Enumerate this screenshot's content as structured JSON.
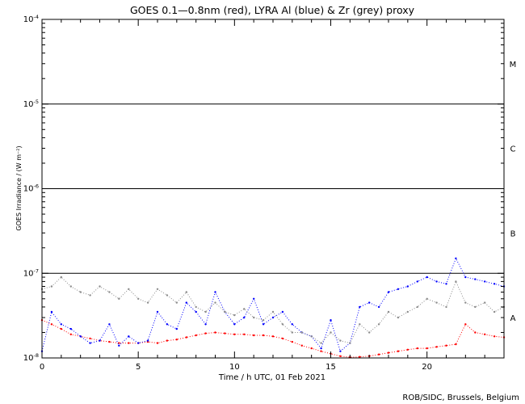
{
  "chart_data": {
    "type": "scatter",
    "title": "GOES 0.1—0.8nm (red), LYRA Al (blue) & Zr (grey) proxy",
    "xlabel": "Time / h UTC, 01 Feb 2021",
    "ylabel": "GOES Irradiance / (W m⁻²)",
    "x_range": [
      0,
      24
    ],
    "x_ticks": [
      "0",
      "5",
      "10",
      "15",
      "20"
    ],
    "x_tick_values": [
      0,
      5,
      10,
      15,
      20
    ],
    "y_scale": "log",
    "y_range": [
      1e-08,
      0.0001
    ],
    "y_tick_base": "10",
    "y_tick_exponents": [
      "-8",
      "-7",
      "-6",
      "-5",
      "-4"
    ],
    "y_tick_values": [
      1e-08,
      1e-07,
      1e-06,
      1e-05,
      0.0001
    ],
    "class_lines": [
      1e-07,
      1e-06,
      1e-05
    ],
    "classes": [
      {
        "label": "A",
        "y": 3e-08
      },
      {
        "label": "B",
        "y": 3e-07
      },
      {
        "label": "C",
        "y": 3e-06
      },
      {
        "label": "M",
        "y": 3e-05
      }
    ],
    "series": [
      {
        "name": "GOES 0.1—0.8nm",
        "color": "#ff0000",
        "points": [
          [
            0.0,
            2.8e-08
          ],
          [
            0.5,
            2.5e-08
          ],
          [
            1.0,
            2.2e-08
          ],
          [
            1.5,
            1.9e-08
          ],
          [
            2.0,
            1.8e-08
          ],
          [
            2.5,
            1.7e-08
          ],
          [
            3.0,
            1.6e-08
          ],
          [
            3.5,
            1.55e-08
          ],
          [
            4.0,
            1.5e-08
          ],
          [
            4.5,
            1.5e-08
          ],
          [
            5.0,
            1.5e-08
          ],
          [
            5.5,
            1.55e-08
          ],
          [
            6.0,
            1.5e-08
          ],
          [
            6.5,
            1.6e-08
          ],
          [
            7.0,
            1.65e-08
          ],
          [
            7.5,
            1.75e-08
          ],
          [
            8.0,
            1.85e-08
          ],
          [
            8.5,
            1.95e-08
          ],
          [
            9.0,
            2e-08
          ],
          [
            9.5,
            1.95e-08
          ],
          [
            10.0,
            1.9e-08
          ],
          [
            10.5,
            1.9e-08
          ],
          [
            11.0,
            1.85e-08
          ],
          [
            11.5,
            1.85e-08
          ],
          [
            12.0,
            1.8e-08
          ],
          [
            12.5,
            1.7e-08
          ],
          [
            13.0,
            1.55e-08
          ],
          [
            13.5,
            1.4e-08
          ],
          [
            14.0,
            1.3e-08
          ],
          [
            14.5,
            1.2e-08
          ],
          [
            15.0,
            1.12e-08
          ],
          [
            15.5,
            1.05e-08
          ],
          [
            16.0,
            1.02e-08
          ],
          [
            16.5,
            1.03e-08
          ],
          [
            17.0,
            1.05e-08
          ],
          [
            17.5,
            1.1e-08
          ],
          [
            18.0,
            1.15e-08
          ],
          [
            18.5,
            1.2e-08
          ],
          [
            19.0,
            1.25e-08
          ],
          [
            19.5,
            1.3e-08
          ],
          [
            20.0,
            1.3e-08
          ],
          [
            20.5,
            1.35e-08
          ],
          [
            21.0,
            1.4e-08
          ],
          [
            21.5,
            1.45e-08
          ],
          [
            22.0,
            2.5e-08
          ],
          [
            22.5,
            2e-08
          ],
          [
            23.0,
            1.9e-08
          ],
          [
            23.5,
            1.8e-08
          ],
          [
            24.0,
            1.75e-08
          ]
        ]
      },
      {
        "name": "LYRA Al",
        "color": "#0000ff",
        "points": [
          [
            0.0,
            1.2e-08
          ],
          [
            0.5,
            3.5e-08
          ],
          [
            1.0,
            2.5e-08
          ],
          [
            1.5,
            2.2e-08
          ],
          [
            2.0,
            1.8e-08
          ],
          [
            2.5,
            1.5e-08
          ],
          [
            3.0,
            1.6e-08
          ],
          [
            3.5,
            2.5e-08
          ],
          [
            4.0,
            1.4e-08
          ],
          [
            4.5,
            1.8e-08
          ],
          [
            5.0,
            1.5e-08
          ],
          [
            5.5,
            1.6e-08
          ],
          [
            6.0,
            3.5e-08
          ],
          [
            6.5,
            2.5e-08
          ],
          [
            7.0,
            2.2e-08
          ],
          [
            7.5,
            4.5e-08
          ],
          [
            8.0,
            3.5e-08
          ],
          [
            8.5,
            2.5e-08
          ],
          [
            9.0,
            6e-08
          ],
          [
            9.5,
            3.5e-08
          ],
          [
            10.0,
            2.5e-08
          ],
          [
            10.5,
            3e-08
          ],
          [
            11.0,
            5e-08
          ],
          [
            11.5,
            2.5e-08
          ],
          [
            12.0,
            3e-08
          ],
          [
            12.5,
            3.5e-08
          ],
          [
            13.0,
            2.5e-08
          ],
          [
            13.5,
            2e-08
          ],
          [
            14.0,
            1.8e-08
          ],
          [
            14.5,
            1.3e-08
          ],
          [
            15.0,
            2.8e-08
          ],
          [
            15.5,
            1.2e-08
          ],
          [
            16.0,
            1.5e-08
          ],
          [
            16.5,
            4e-08
          ],
          [
            17.0,
            4.5e-08
          ],
          [
            17.5,
            4e-08
          ],
          [
            18.0,
            6e-08
          ],
          [
            18.5,
            6.5e-08
          ],
          [
            19.0,
            7e-08
          ],
          [
            19.5,
            8e-08
          ],
          [
            20.0,
            9e-08
          ],
          [
            20.5,
            8e-08
          ],
          [
            21.0,
            7.5e-08
          ],
          [
            21.5,
            1.5e-07
          ],
          [
            22.0,
            9e-08
          ],
          [
            22.5,
            8.5e-08
          ],
          [
            23.0,
            8e-08
          ],
          [
            23.5,
            7.5e-08
          ],
          [
            24.0,
            7e-08
          ]
        ]
      },
      {
        "name": "Zr",
        "color": "#8c8c8c",
        "points": [
          [
            0.0,
            6.5e-08
          ],
          [
            0.5,
            7e-08
          ],
          [
            1.0,
            9e-08
          ],
          [
            1.5,
            7e-08
          ],
          [
            2.0,
            6e-08
          ],
          [
            2.5,
            5.5e-08
          ],
          [
            3.0,
            7e-08
          ],
          [
            3.5,
            6e-08
          ],
          [
            4.0,
            5e-08
          ],
          [
            4.5,
            6.5e-08
          ],
          [
            5.0,
            5e-08
          ],
          [
            5.5,
            4.5e-08
          ],
          [
            6.0,
            6.5e-08
          ],
          [
            6.5,
            5.5e-08
          ],
          [
            7.0,
            4.5e-08
          ],
          [
            7.5,
            6e-08
          ],
          [
            8.0,
            4e-08
          ],
          [
            8.5,
            3.5e-08
          ],
          [
            9.0,
            4.5e-08
          ],
          [
            9.5,
            3.5e-08
          ],
          [
            10.0,
            3.2e-08
          ],
          [
            10.5,
            3.8e-08
          ],
          [
            11.0,
            3e-08
          ],
          [
            11.5,
            2.8e-08
          ],
          [
            12.0,
            3.5e-08
          ],
          [
            12.5,
            2.5e-08
          ],
          [
            13.0,
            2e-08
          ],
          [
            13.5,
            2e-08
          ],
          [
            14.0,
            1.8e-08
          ],
          [
            14.5,
            1.5e-08
          ],
          [
            15.0,
            2e-08
          ],
          [
            15.5,
            1.6e-08
          ],
          [
            16.0,
            1.5e-08
          ],
          [
            16.5,
            2.5e-08
          ],
          [
            17.0,
            2e-08
          ],
          [
            17.5,
            2.5e-08
          ],
          [
            18.0,
            3.5e-08
          ],
          [
            18.5,
            3e-08
          ],
          [
            19.0,
            3.5e-08
          ],
          [
            19.5,
            4e-08
          ],
          [
            20.0,
            5e-08
          ],
          [
            20.5,
            4.5e-08
          ],
          [
            21.0,
            4e-08
          ],
          [
            21.5,
            8e-08
          ],
          [
            22.0,
            4.5e-08
          ],
          [
            22.5,
            4e-08
          ],
          [
            23.0,
            4.5e-08
          ],
          [
            23.5,
            3.5e-08
          ],
          [
            24.0,
            4e-08
          ]
        ]
      }
    ],
    "grid": false,
    "legend": "none"
  },
  "credit": "ROB/SIDC, Brussels, Belgium"
}
